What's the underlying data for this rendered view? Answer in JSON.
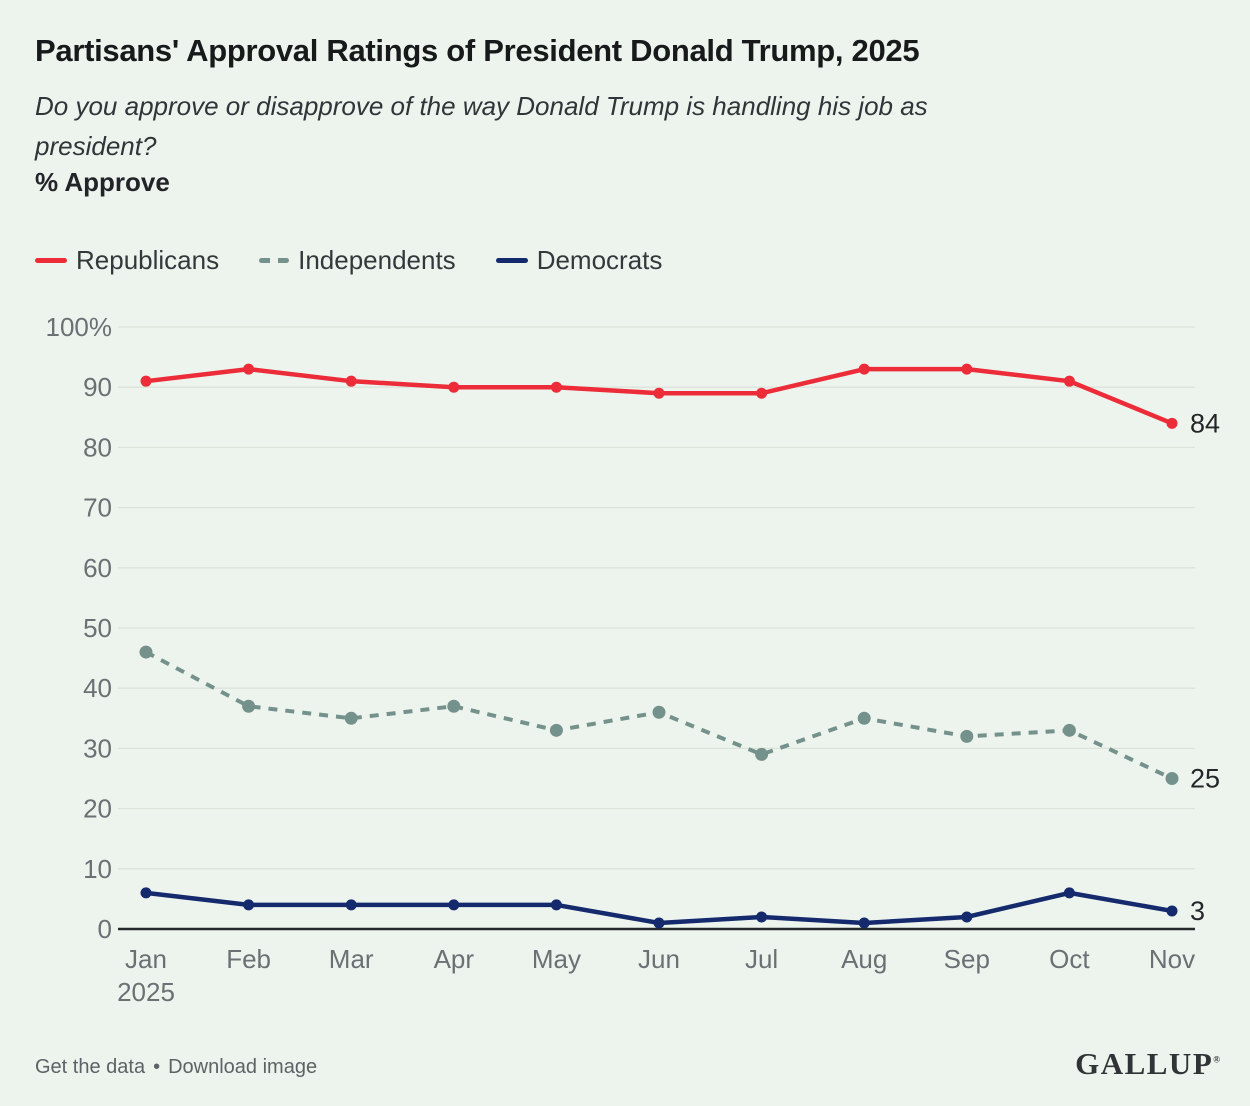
{
  "header": {
    "title": "Partisans' Approval Ratings of President Donald Trump, 2025",
    "subtitle": "Do you approve or disapprove of the way Donald Trump is handling his job as president?",
    "metric_label": "% Approve"
  },
  "legend": [
    {
      "label": "Republicans",
      "color": "#ec2c38",
      "style": "solid"
    },
    {
      "label": "Independents",
      "color": "#74918b",
      "style": "dashed"
    },
    {
      "label": "Democrats",
      "color": "#142a6d",
      "style": "solid"
    }
  ],
  "chart_data": {
    "type": "line",
    "title": "Partisans' Approval Ratings of President Donald Trump, 2025",
    "ylabel": "% Approve",
    "categories": [
      "Jan",
      "Feb",
      "Mar",
      "Apr",
      "May",
      "Jun",
      "Jul",
      "Aug",
      "Sep",
      "Oct",
      "Nov"
    ],
    "x_sub_label": "2025",
    "series": [
      {
        "name": "Republicans",
        "color": "#ec2c38",
        "dashed": false,
        "values": [
          91,
          93,
          91,
          90,
          90,
          89,
          89,
          93,
          93,
          91,
          84
        ],
        "end_label": "84"
      },
      {
        "name": "Independents",
        "color": "#74918b",
        "dashed": true,
        "values": [
          46,
          37,
          35,
          37,
          33,
          36,
          29,
          35,
          32,
          33,
          25
        ],
        "end_label": "25"
      },
      {
        "name": "Democrats",
        "color": "#142a6d",
        "dashed": false,
        "values": [
          6,
          4,
          4,
          4,
          4,
          1,
          2,
          1,
          2,
          6,
          3
        ],
        "end_label": "3"
      }
    ],
    "ylim": [
      0,
      100
    ],
    "yticks": [
      0,
      10,
      20,
      30,
      40,
      50,
      60,
      70,
      80,
      90,
      100
    ],
    "ytick_top_label": "100%",
    "grid": true,
    "legend_position": "top-left"
  },
  "colors": {
    "background": "#edf4ed",
    "gridline": "#dce3db",
    "zero_axis": "#26292c",
    "axis_text": "#6a7074",
    "end_label_text": "#232729"
  },
  "footer": {
    "links": [
      "Get the data",
      "Download image"
    ],
    "separator": "•",
    "logo": "GALLUP",
    "logo_mark": "®"
  }
}
